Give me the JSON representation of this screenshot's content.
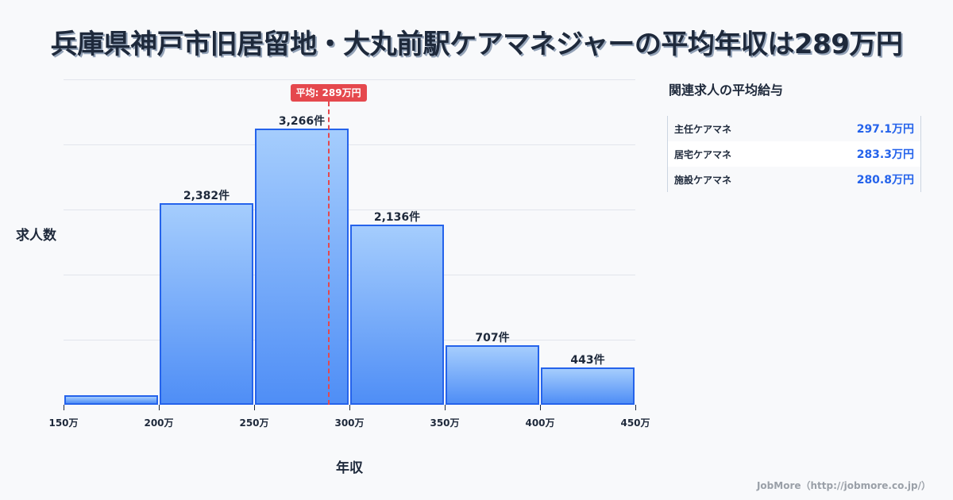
{
  "title": "兵庫県神戸市旧居留地・大丸前駅ケアマネジャーの平均年収は289万円",
  "chart_data": {
    "type": "bar",
    "title": "兵庫県神戸市旧居留地・大丸前駅ケアマネジャーの平均年収は289万円",
    "xlabel": "年収",
    "ylabel": "求人数",
    "categories": [
      "150万-200万",
      "200万-250万",
      "250万-300万",
      "300万-350万",
      "350万-400万",
      "400万-450万"
    ],
    "bin_edges": [
      150,
      200,
      250,
      300,
      350,
      400,
      450
    ],
    "tick_labels": [
      "150万",
      "200万",
      "250万",
      "300万",
      "350万",
      "400万",
      "450万"
    ],
    "values": [
      110,
      2382,
      3266,
      2136,
      707,
      443
    ],
    "value_labels": [
      "",
      "2,382件",
      "3,266件",
      "2,136件",
      "707件",
      "443件"
    ],
    "ylim": [
      0,
      3850
    ],
    "grid": true,
    "mean": {
      "value": 289,
      "label": "平均: 289万円"
    }
  },
  "side_panel": {
    "title": "関連求人の平均給与",
    "rows": [
      {
        "name": "主任ケアマネ",
        "value": "297.1万円"
      },
      {
        "name": "居宅ケアマネ",
        "value": "283.3万円"
      },
      {
        "name": "施設ケアマネ",
        "value": "280.8万円"
      }
    ]
  },
  "footer": "JobMore（http://jobmore.co.jp/）",
  "colors": {
    "bar_border": "#2563eb",
    "bar_top": "#a5cdfd",
    "bar_bottom": "#4f8ef6",
    "mean": "#e5484d",
    "accent_value": "#2563eb"
  }
}
